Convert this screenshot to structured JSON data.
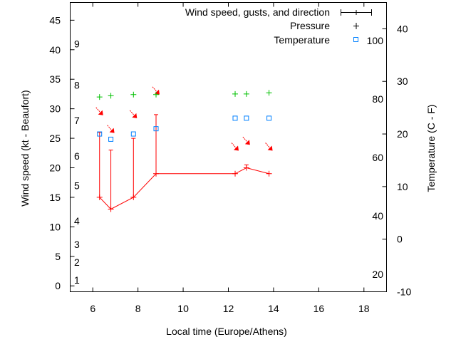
{
  "chart_data": {
    "type": "line",
    "xlabel": "Local time (Europe/Athens)",
    "ylabel": "Wind speed (kt - Beaufort)",
    "y2label": "Temperature (C - F)",
    "xlim": [
      5,
      19
    ],
    "ylim": [
      -1,
      48
    ],
    "y2lim": [
      -10,
      45
    ],
    "x_ticks": [
      6,
      8,
      10,
      12,
      14,
      16,
      18
    ],
    "y_ticks": [
      0,
      5,
      10,
      15,
      20,
      25,
      30,
      35,
      40,
      45
    ],
    "y2_ticks": [
      -10,
      0,
      10,
      20,
      30,
      40
    ],
    "beaufort_labels": [
      {
        "label": "1",
        "kt": 1
      },
      {
        "label": "2",
        "kt": 4
      },
      {
        "label": "3",
        "kt": 7
      },
      {
        "label": "4",
        "kt": 11
      },
      {
        "label": "5",
        "kt": 17
      },
      {
        "label": "6",
        "kt": 22
      },
      {
        "label": "7",
        "kt": 28
      },
      {
        "label": "8",
        "kt": 34
      },
      {
        "label": "9",
        "kt": 41
      }
    ],
    "fahrenheit_labels": [
      {
        "label": "20",
        "f": 20
      },
      {
        "label": "40",
        "f": 40
      },
      {
        "label": "60",
        "f": 60
      },
      {
        "label": "80",
        "f": 80
      },
      {
        "label": "100",
        "f": 100
      }
    ],
    "legend": {
      "placement": "top-right",
      "entries": [
        "Wind speed, gusts, and direction",
        "Pressure",
        "Temperature"
      ]
    },
    "series": [
      {
        "name": "Wind speed, gusts, and direction",
        "color": "#ff0000",
        "x": [
          6.3,
          6.8,
          7.8,
          8.8,
          12.3,
          12.8,
          13.8
        ],
        "speed": [
          15,
          13,
          15,
          19,
          19,
          20,
          19
        ],
        "gust": [
          26,
          23,
          25,
          29,
          null,
          20.5,
          null
        ],
        "direction": "NW",
        "arrow_y": [
          29.5,
          26.5,
          29,
          33,
          23.5,
          24.5,
          23.5
        ]
      },
      {
        "name": "Pressure",
        "color": "#00c000",
        "x": [
          6.3,
          6.8,
          7.8,
          8.8,
          12.3,
          12.8,
          13.8
        ],
        "y_on_wind_axis": [
          32,
          32.2,
          32.4,
          32.4,
          32.5,
          32.5,
          32.7
        ]
      },
      {
        "name": "Temperature",
        "color": "#0080ff",
        "x": [
          6.3,
          6.8,
          7.8,
          8.8,
          12.3,
          12.8,
          13.8
        ],
        "celsius": [
          20,
          19,
          20,
          21,
          23,
          23,
          23
        ]
      }
    ]
  }
}
